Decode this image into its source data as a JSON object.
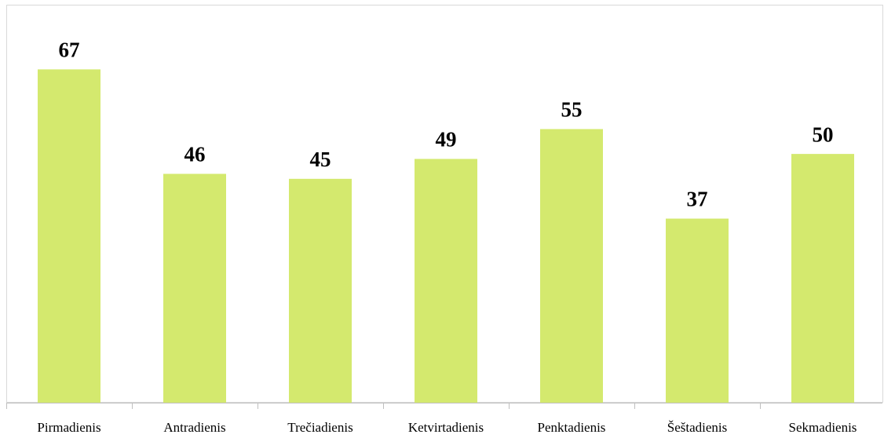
{
  "chart_data": {
    "type": "bar",
    "categories": [
      "Pirmadienis",
      "Antradienis",
      "Trečiadienis",
      "Ketvirtadienis",
      "Penktadienis",
      "Šeštadienis",
      "Sekmadienis"
    ],
    "values": [
      67,
      46,
      45,
      49,
      55,
      37,
      50
    ],
    "color": "#d4e96e",
    "ylim": [
      0,
      80
    ]
  }
}
